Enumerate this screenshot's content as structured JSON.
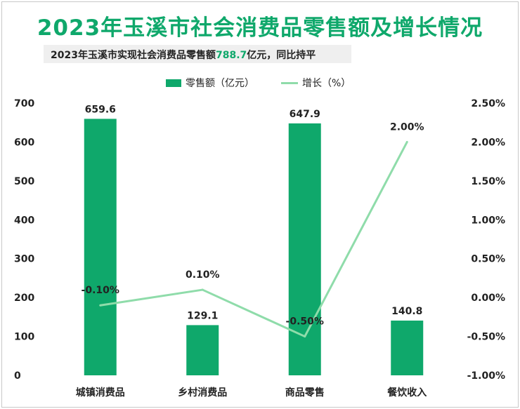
{
  "title": "2023年玉溪市社会消费品零售额及增长情况",
  "subtitle": {
    "prefix": "2023年玉溪市实现社会消费品零售额",
    "value": "788.7",
    "suffix": "亿元，同比持平"
  },
  "colors": {
    "bar": "#0fa86b",
    "line": "#8fdcaa",
    "title": "#0fa86b"
  },
  "chart_data": {
    "type": "bar",
    "categories": [
      "城镇消费品",
      "乡村消费品",
      "商品零售",
      "餐饮收入"
    ],
    "series": [
      {
        "name": "零售额（亿元）",
        "type": "bar",
        "axis": "left",
        "values": [
          659.6,
          129.1,
          647.9,
          140.8
        ],
        "labels": [
          "659.6",
          "129.1",
          "647.9",
          "140.8"
        ]
      },
      {
        "name": "增长（%）",
        "type": "line",
        "axis": "right",
        "values": [
          -0.1,
          0.1,
          -0.5,
          2.0
        ],
        "labels": [
          "-0.10%",
          "0.10%",
          "-0.50%",
          "2.00%"
        ]
      }
    ],
    "y_left": {
      "ylim": [
        0,
        700
      ],
      "ticks": [
        "0",
        "100",
        "200",
        "300",
        "400",
        "500",
        "600",
        "700"
      ]
    },
    "y_right": {
      "ylim": [
        -1.0,
        2.5
      ],
      "ticks": [
        "2.50%",
        "2.00%",
        "1.50%",
        "1.00%",
        "0.50%",
        "0.00%",
        "-0.50%",
        "-1.00%"
      ]
    },
    "legend_position": "top-center",
    "grid": false
  }
}
